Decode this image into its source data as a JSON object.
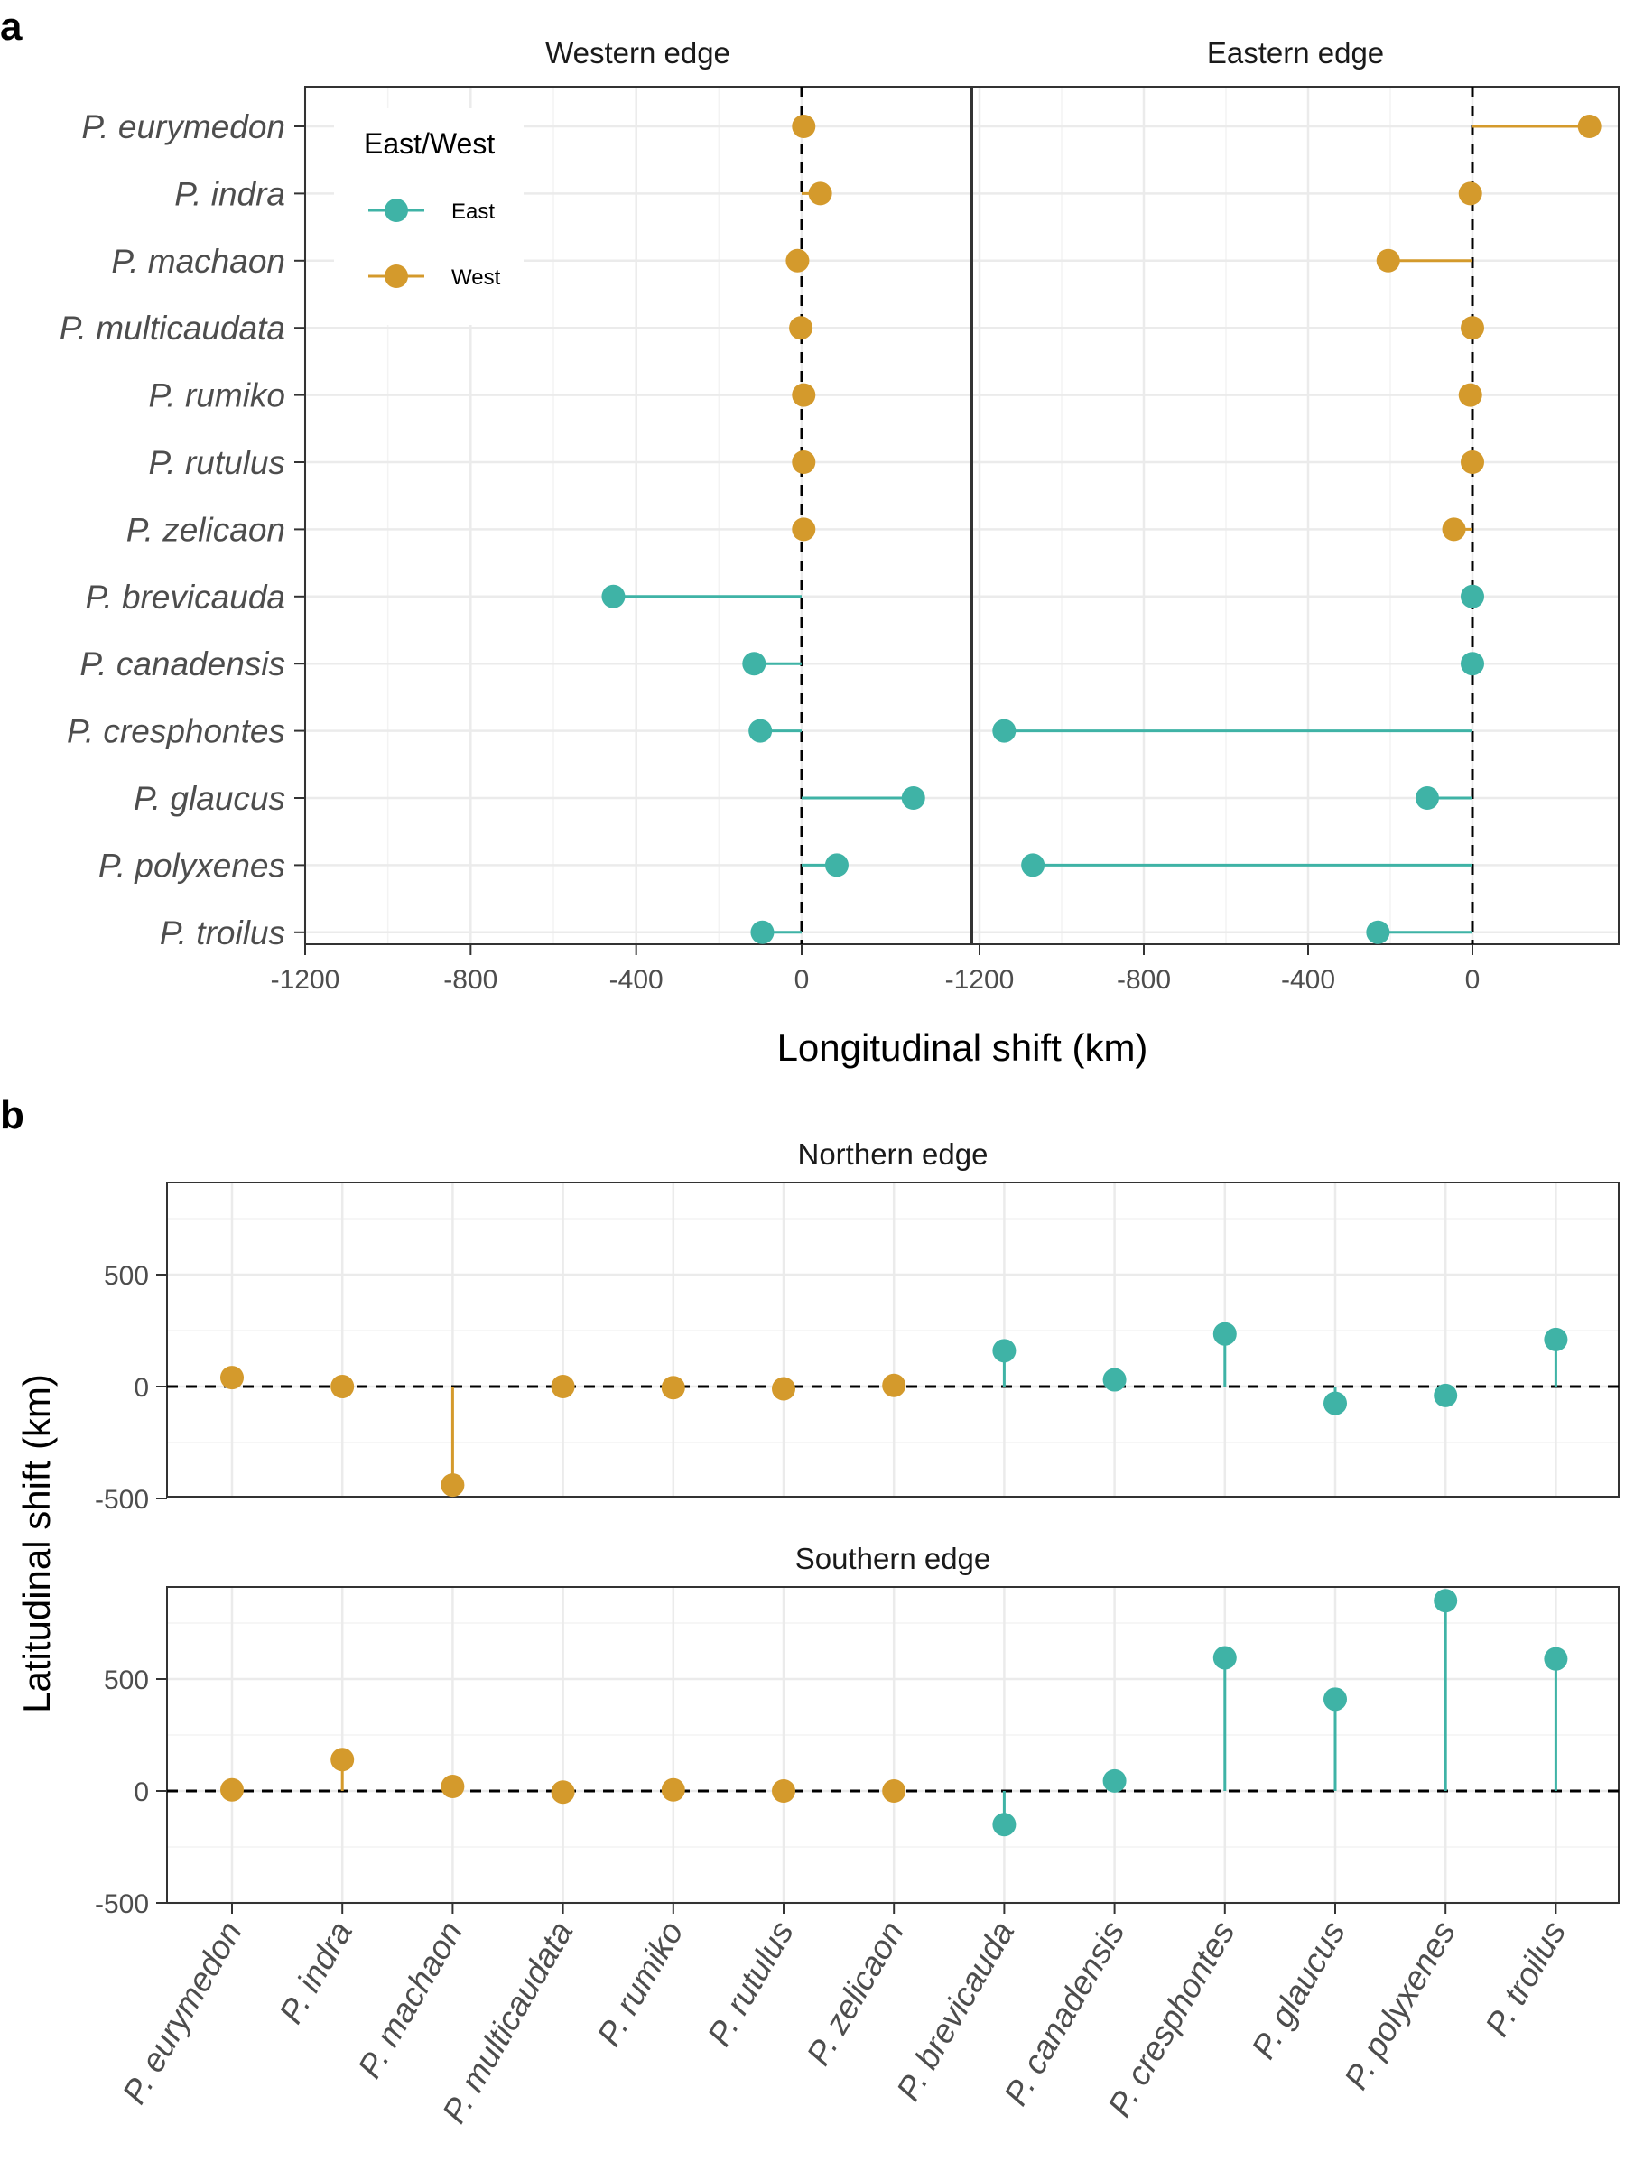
{
  "panel_labels": {
    "a": "a",
    "b": "b"
  },
  "colors": {
    "East": "#3fb3a6",
    "West": "#d49a2c",
    "grid": "#ebebeb",
    "zero_line": "#000000"
  },
  "legend": {
    "title": "East/West",
    "entries": [
      {
        "label": "East",
        "group": "East"
      },
      {
        "label": "West",
        "group": "West"
      }
    ]
  },
  "chart_data": [
    {
      "type": "lollipop",
      "panel": "a",
      "orientation": "horizontal",
      "xlabel": "Longitudinal shift (km)",
      "xlim": [
        -1200,
        150
      ],
      "x_ticks": [
        -1200,
        -800,
        -400,
        0
      ],
      "x_tick_labels": [
        "-1200",
        "-800",
        "-400",
        "0"
      ],
      "grid": true,
      "legend_position": "top-left of first facet",
      "categories": [
        "P. eurymedon",
        "P. indra",
        "P. machaon",
        "P. multicaudata",
        "P. rumiko",
        "P. rutulus",
        "P. zelicaon",
        "P. brevicauda",
        "P. canadensis",
        "P. cresphontes",
        "P. glaucus",
        "P. polyxenes",
        "P. troilus"
      ],
      "groups": [
        "West",
        "West",
        "West",
        "West",
        "West",
        "West",
        "West",
        "East",
        "East",
        "East",
        "East",
        "East",
        "East"
      ],
      "facets": [
        {
          "title": "Western edge",
          "values": [
            5,
            45,
            -10,
            -2,
            5,
            5,
            5,
            -455,
            -115,
            -100,
            270,
            85,
            -95
          ]
        },
        {
          "title": "Eastern edge",
          "values": [
            285,
            -5,
            -205,
            0,
            -5,
            0,
            -45,
            0,
            0,
            -1140,
            -110,
            -1070,
            -230
          ]
        }
      ]
    },
    {
      "type": "lollipop",
      "panel": "b",
      "orientation": "vertical",
      "ylabel": "Latitudinal shift (km)",
      "ylim": [
        -500,
        900
      ],
      "y_ticks": [
        -500,
        0,
        500
      ],
      "y_tick_labels": [
        "-500",
        "0",
        "500"
      ],
      "grid": true,
      "categories": [
        "P. eurymedon",
        "P. indra",
        "P. machaon",
        "P. multicaudata",
        "P. rumiko",
        "P. rutulus",
        "P. zelicaon",
        "P. brevicauda",
        "P. canadensis",
        "P. cresphontes",
        "P. glaucus",
        "P. polyxenes",
        "P. troilus"
      ],
      "groups": [
        "West",
        "West",
        "West",
        "West",
        "West",
        "West",
        "West",
        "East",
        "East",
        "East",
        "East",
        "East",
        "East"
      ],
      "facets": [
        {
          "title": "Northern edge",
          "values": [
            40,
            0,
            -440,
            0,
            -5,
            -10,
            5,
            160,
            30,
            235,
            -75,
            -40,
            210
          ]
        },
        {
          "title": "Southern edge",
          "values": [
            5,
            140,
            20,
            -5,
            5,
            0,
            0,
            -150,
            45,
            595,
            410,
            850,
            590
          ]
        }
      ]
    }
  ]
}
